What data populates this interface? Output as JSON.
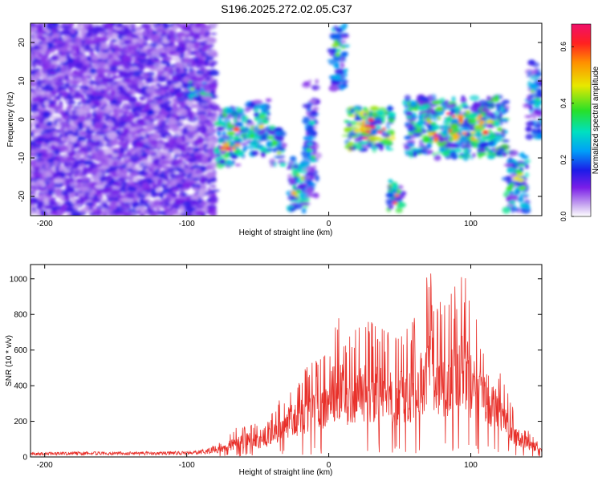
{
  "title": "S196.2025.272.02.05.C37",
  "chart_data": [
    {
      "type": "heatmap",
      "title": "S196.2025.272.02.05.C37",
      "xlabel": "Height of straight line (km)",
      "ylabel": "Frequency (Hz)",
      "xlim": [
        -210,
        150
      ],
      "ylim": [
        -25,
        25
      ],
      "xticks": [
        "-200",
        "-100",
        "0",
        "100"
      ],
      "yticks": [
        "-20",
        "-10",
        "0",
        "10",
        "20"
      ],
      "colorbar": {
        "label": "Normalized spectral amplitude",
        "range": [
          0.0,
          0.68
        ],
        "ticks": [
          "0.0",
          "0.2",
          "0.4",
          "0.6"
        ]
      },
      "series": [
        {
          "x_range": [
            -210,
            -80
          ],
          "y_range": [
            -25,
            25
          ],
          "amplitude": 0.12
        },
        {
          "x_range": [
            -100,
            -85
          ],
          "y_range": [
            5,
            10
          ],
          "amplitude": 0.25
        },
        {
          "x_range": [
            -78,
            -58
          ],
          "y_range": [
            -12,
            3
          ],
          "amplitude": 0.3
        },
        {
          "x_range": [
            -58,
            -42
          ],
          "y_range": [
            -9,
            5
          ],
          "amplitude": 0.25
        },
        {
          "x_range": [
            -42,
            -32
          ],
          "y_range": [
            -12,
            -2
          ],
          "amplitude": 0.28
        },
        {
          "x_range": [
            -28,
            -16
          ],
          "y_range": [
            -24,
            -10
          ],
          "amplitude": 0.25
        },
        {
          "x_range": [
            -16,
            -8
          ],
          "y_range": [
            -20,
            10
          ],
          "amplitude": 0.18
        },
        {
          "x_range": [
            2,
            12
          ],
          "y_range": [
            8,
            25
          ],
          "amplitude": 0.2
        },
        {
          "x_range": [
            12,
            45
          ],
          "y_range": [
            -8,
            3
          ],
          "amplitude": 0.35
        },
        {
          "x_range": [
            42,
            52
          ],
          "y_range": [
            -24,
            -16
          ],
          "amplitude": 0.3
        },
        {
          "x_range": [
            55,
            125
          ],
          "y_range": [
            -10,
            6
          ],
          "amplitude": 0.3
        },
        {
          "x_range": [
            125,
            140
          ],
          "y_range": [
            -24,
            -8
          ],
          "amplitude": 0.25
        },
        {
          "x_range": [
            140,
            150
          ],
          "y_range": [
            -5,
            15
          ],
          "amplitude": 0.2
        }
      ]
    },
    {
      "type": "line",
      "xlabel": "Height of straight line (km)",
      "ylabel": "SNR (10 * v/v)",
      "xlim": [
        -210,
        150
      ],
      "ylim": [
        0,
        1080
      ],
      "xticks": [
        "-200",
        "-100",
        "0",
        "100"
      ],
      "yticks": [
        "0",
        "200",
        "400",
        "600",
        "800",
        "1000"
      ],
      "series": [
        {
          "color": "#e8302a",
          "envelope_x": [
            -210,
            -180,
            -150,
            -120,
            -95,
            -85,
            -75,
            -65,
            -55,
            -45,
            -35,
            -25,
            -15,
            -5,
            5,
            15,
            25,
            35,
            45,
            55,
            65,
            70,
            80,
            90,
            95,
            100,
            110,
            120,
            130,
            140,
            150
          ],
          "envelope_y": [
            25,
            30,
            30,
            30,
            35,
            50,
            90,
            170,
            200,
            180,
            330,
            430,
            520,
            560,
            800,
            700,
            760,
            760,
            700,
            720,
            900,
            1080,
            850,
            980,
            1060,
            850,
            700,
            520,
            270,
            160,
            60
          ]
        }
      ]
    }
  ]
}
